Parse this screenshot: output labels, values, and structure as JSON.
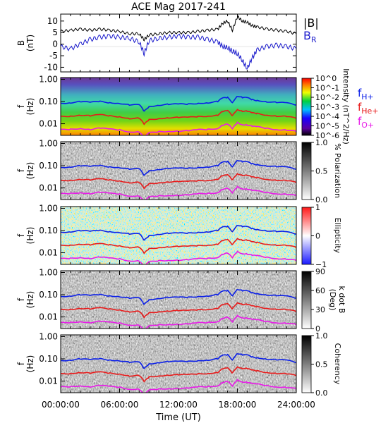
{
  "title": "ACE Mag 2017-241",
  "x_axis": {
    "label": "Time (UT)",
    "ticks": [
      "00:00:00",
      "06:00:00",
      "12:00:00",
      "18:00:00",
      "24:00:00"
    ]
  },
  "colors": {
    "B_total": "#000000",
    "B_R": "#1a1acc",
    "f_H": "#0a1ee8",
    "f_He": "#e81a1a",
    "f_O": "#e81ae8"
  },
  "chart_data": [
    {
      "type": "line",
      "panel": "magnetic-field",
      "ylabel": "B (nT)",
      "ylim": [
        -12,
        13
      ],
      "yticks": [
        "10",
        "5",
        "0",
        "-5",
        "-10"
      ],
      "legend": [
        "|B|",
        "B_R"
      ],
      "legend_text": {
        "B": "|B|",
        "R_main": "B",
        "R_sub": "R"
      },
      "x": [
        0,
        1,
        2,
        3,
        4,
        5,
        6,
        7,
        8,
        8.5,
        9,
        10,
        11,
        12,
        13,
        14,
        15,
        16,
        16.5,
        17,
        17.5,
        18,
        18.5,
        19,
        19.5,
        20,
        21,
        22,
        23,
        24
      ],
      "series": [
        {
          "name": "|B|",
          "values": [
            5.5,
            6,
            6.5,
            6,
            6.5,
            6,
            5.5,
            4.5,
            4.5,
            2,
            4,
            4.5,
            5,
            5,
            5,
            5.5,
            6,
            6.5,
            9,
            10,
            6,
            12,
            10,
            9.5,
            8,
            7.5,
            6.5,
            6,
            5.5,
            4.5
          ]
        },
        {
          "name": "B_R",
          "values": [
            -1,
            -2,
            0,
            2,
            3,
            3.5,
            3,
            2.5,
            1,
            -4,
            1.5,
            2.5,
            3,
            3.5,
            3,
            3,
            2,
            1,
            -1,
            -1.5,
            -3,
            -4,
            -7,
            -10.5,
            -6,
            -2.5,
            -1,
            -0.5,
            -1,
            -2
          ]
        }
      ]
    },
    {
      "type": "heatmap",
      "panel": "power-intensity",
      "ylabel": "f (Hz)",
      "yscale": "log",
      "ylim": [
        0.003,
        1.2
      ],
      "yticks": [
        "1.00",
        "0.10",
        "0.01"
      ],
      "colorbar": {
        "label": "Intensity (nT^2/Hz)",
        "ticks": [
          "10^0",
          "10^-1",
          "10^-2",
          "10^-3",
          "10^-4",
          "10^-5",
          "10^-6"
        ],
        "scale": "rainbow"
      },
      "legend": [
        {
          "main": "f",
          "sub": "H+"
        },
        {
          "main": "f",
          "sub": "He+"
        },
        {
          "main": "f",
          "sub": "O+"
        }
      ]
    },
    {
      "type": "heatmap",
      "panel": "polarization",
      "ylabel": "f (Hz)",
      "yscale": "log",
      "ylim": [
        0.003,
        1.2
      ],
      "yticks": [
        "1.00",
        "0.10",
        "0.01"
      ],
      "colorbar": {
        "label": "% Polarization",
        "ticks": [
          "1.0",
          "0.5",
          "0.0"
        ],
        "scale": "grayscale"
      }
    },
    {
      "type": "heatmap",
      "panel": "ellipticity",
      "ylabel": "f (Hz)",
      "yscale": "log",
      "ylim": [
        0.003,
        1.2
      ],
      "yticks": [
        "1.00",
        "0.10",
        "0.01"
      ],
      "colorbar": {
        "label": "Ellipticity",
        "ticks": [
          "1",
          "0",
          "−1"
        ],
        "scale": "blue-white-red"
      }
    },
    {
      "type": "heatmap",
      "panel": "k-dot-b",
      "ylabel": "f (Hz)",
      "yscale": "log",
      "ylim": [
        0.003,
        1.2
      ],
      "yticks": [
        "1.00",
        "0.10",
        "0.01"
      ],
      "colorbar": {
        "label": "k dot B (Deg)",
        "label_lines": [
          "k dot B",
          "(Deg)"
        ],
        "ticks": [
          "90",
          "60",
          "30",
          "0"
        ],
        "scale": "grayscale"
      }
    },
    {
      "type": "heatmap",
      "panel": "coherency",
      "ylabel": "f (Hz)",
      "yscale": "log",
      "ylim": [
        0.003,
        1.2
      ],
      "yticks": [
        "1.00",
        "0.10",
        "0.01"
      ],
      "colorbar": {
        "label": "Coherency",
        "ticks": [
          "1.0",
          "0.5",
          "0.0"
        ],
        "scale": "grayscale"
      }
    },
    {
      "type": "line",
      "panel": "gyrofrequencies",
      "x": [
        0,
        1,
        2,
        3,
        4,
        5,
        6,
        7,
        8,
        8.5,
        9,
        10,
        11,
        12,
        13,
        14,
        15,
        16,
        16.5,
        17,
        17.5,
        18,
        18.5,
        19,
        19.5,
        20,
        21,
        22,
        23,
        24
      ],
      "series": [
        {
          "name": "f_H+",
          "values": [
            0.084,
            0.09,
            0.1,
            0.09,
            0.1,
            0.09,
            0.085,
            0.07,
            0.07,
            0.035,
            0.06,
            0.07,
            0.075,
            0.075,
            0.075,
            0.085,
            0.09,
            0.1,
            0.14,
            0.15,
            0.09,
            0.18,
            0.15,
            0.145,
            0.12,
            0.115,
            0.1,
            0.09,
            0.085,
            0.07
          ]
        },
        {
          "name": "f_He+",
          "values": [
            0.021,
            0.0225,
            0.025,
            0.0225,
            0.025,
            0.0225,
            0.0212,
            0.0175,
            0.0175,
            0.009,
            0.015,
            0.0175,
            0.019,
            0.019,
            0.019,
            0.021,
            0.0225,
            0.025,
            0.035,
            0.0375,
            0.0225,
            0.045,
            0.0375,
            0.036,
            0.03,
            0.029,
            0.025,
            0.0225,
            0.021,
            0.0175
          ]
        },
        {
          "name": "f_O+",
          "values": [
            0.0053,
            0.0056,
            0.0063,
            0.0056,
            0.0063,
            0.0056,
            0.0053,
            0.0044,
            0.0044,
            0.0022,
            0.0038,
            0.0044,
            0.0047,
            0.0047,
            0.0047,
            0.0053,
            0.0056,
            0.0063,
            0.0088,
            0.0094,
            0.0056,
            0.0113,
            0.0094,
            0.009,
            0.0075,
            0.0072,
            0.0063,
            0.0056,
            0.0053,
            0.0044
          ]
        }
      ]
    }
  ]
}
